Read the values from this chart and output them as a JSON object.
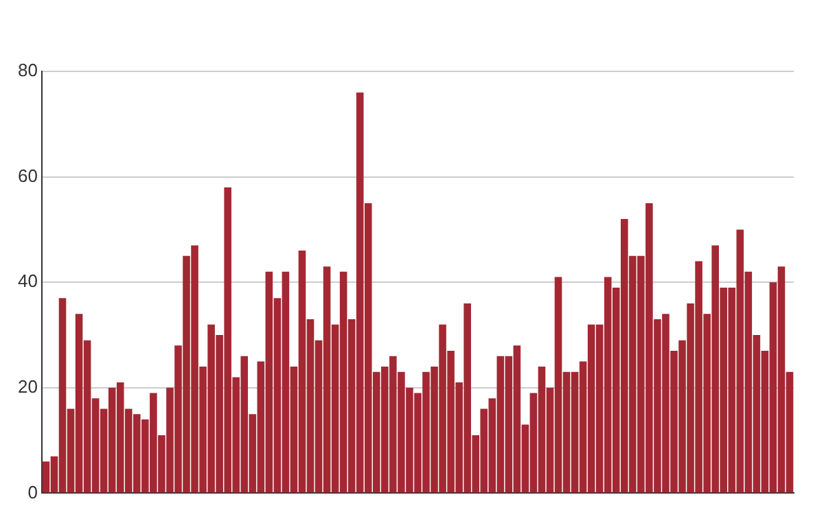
{
  "chart_data": {
    "type": "bar",
    "categories": [
      null,
      null,
      null,
      null,
      null,
      null,
      null,
      null,
      null,
      null,
      null,
      null,
      null,
      null,
      null,
      null,
      null,
      null,
      null,
      null,
      null,
      null,
      null,
      null,
      null,
      null,
      null,
      null,
      null,
      null,
      null,
      null,
      null,
      null,
      null,
      null,
      null,
      null,
      null,
      null,
      null,
      null,
      null,
      null,
      null,
      null,
      null,
      null,
      null,
      null,
      null,
      null,
      null,
      null,
      null,
      null,
      null,
      null,
      null,
      null,
      null,
      null,
      null,
      null,
      null,
      null,
      null,
      null,
      null,
      null,
      null,
      null,
      null,
      null,
      null,
      null,
      null,
      null,
      null,
      null,
      null,
      null,
      null,
      null,
      null,
      null,
      null,
      null,
      null,
      null,
      null
    ],
    "values": [
      6,
      7,
      37,
      16,
      34,
      29,
      18,
      16,
      20,
      21,
      16,
      15,
      14,
      19,
      11,
      20,
      28,
      45,
      47,
      24,
      32,
      30,
      58,
      22,
      26,
      15,
      25,
      42,
      37,
      42,
      24,
      46,
      33,
      29,
      43,
      32,
      42,
      33,
      76,
      55,
      23,
      24,
      26,
      23,
      20,
      19,
      23,
      24,
      32,
      27,
      21,
      36,
      11,
      16,
      18,
      26,
      26,
      28,
      13,
      19,
      24,
      20,
      41,
      23,
      23,
      25,
      32,
      32,
      41,
      39,
      52,
      45,
      45,
      55,
      33,
      34,
      27,
      29,
      36,
      44,
      34,
      47,
      39,
      39,
      50,
      42,
      30,
      27,
      40,
      43,
      23
    ],
    "color": "#a32833",
    "ylim": [
      0,
      80
    ],
    "yticks": [
      0,
      20,
      40,
      60,
      80
    ],
    "grid": "y",
    "tick_labels": "y",
    "legend": false
  }
}
